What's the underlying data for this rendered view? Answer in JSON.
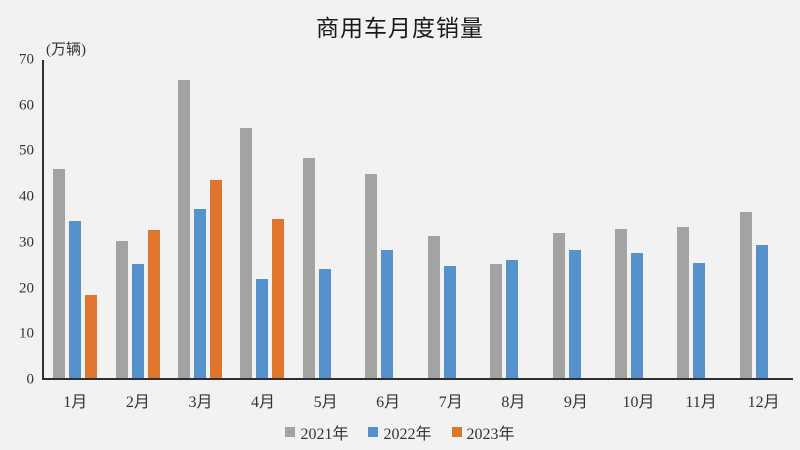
{
  "chart_data": {
    "type": "bar",
    "title": "商用车月度销量",
    "y_unit_label": "(万辆)",
    "categories": [
      "1月",
      "2月",
      "3月",
      "4月",
      "5月",
      "6月",
      "7月",
      "8月",
      "9月",
      "10月",
      "11月",
      "12月"
    ],
    "series": [
      {
        "name": "2021年",
        "color": "#a3a3a3",
        "values": [
          45.9,
          30.2,
          65.5,
          55.0,
          48.5,
          44.8,
          31.2,
          25.0,
          32.0,
          32.8,
          33.2,
          36.6
        ]
      },
      {
        "name": "2022年",
        "color": "#5592cc",
        "values": [
          34.6,
          25.2,
          37.2,
          21.8,
          24.1,
          28.2,
          24.7,
          26.0,
          28.1,
          27.6,
          25.4,
          29.3
        ]
      },
      {
        "name": "2023年",
        "color": "#e0752d",
        "values": [
          18.2,
          32.6,
          43.5,
          35.0,
          null,
          null,
          null,
          null,
          null,
          null,
          null,
          null
        ]
      }
    ],
    "ylim": [
      0,
      70
    ],
    "yticks": [
      0,
      10,
      20,
      30,
      40,
      50,
      60,
      70
    ],
    "grid": false,
    "legend_position": "bottom",
    "colors": {
      "background": "#f2f2f2",
      "axis": "#2f2f2f",
      "text": "#333333"
    }
  }
}
